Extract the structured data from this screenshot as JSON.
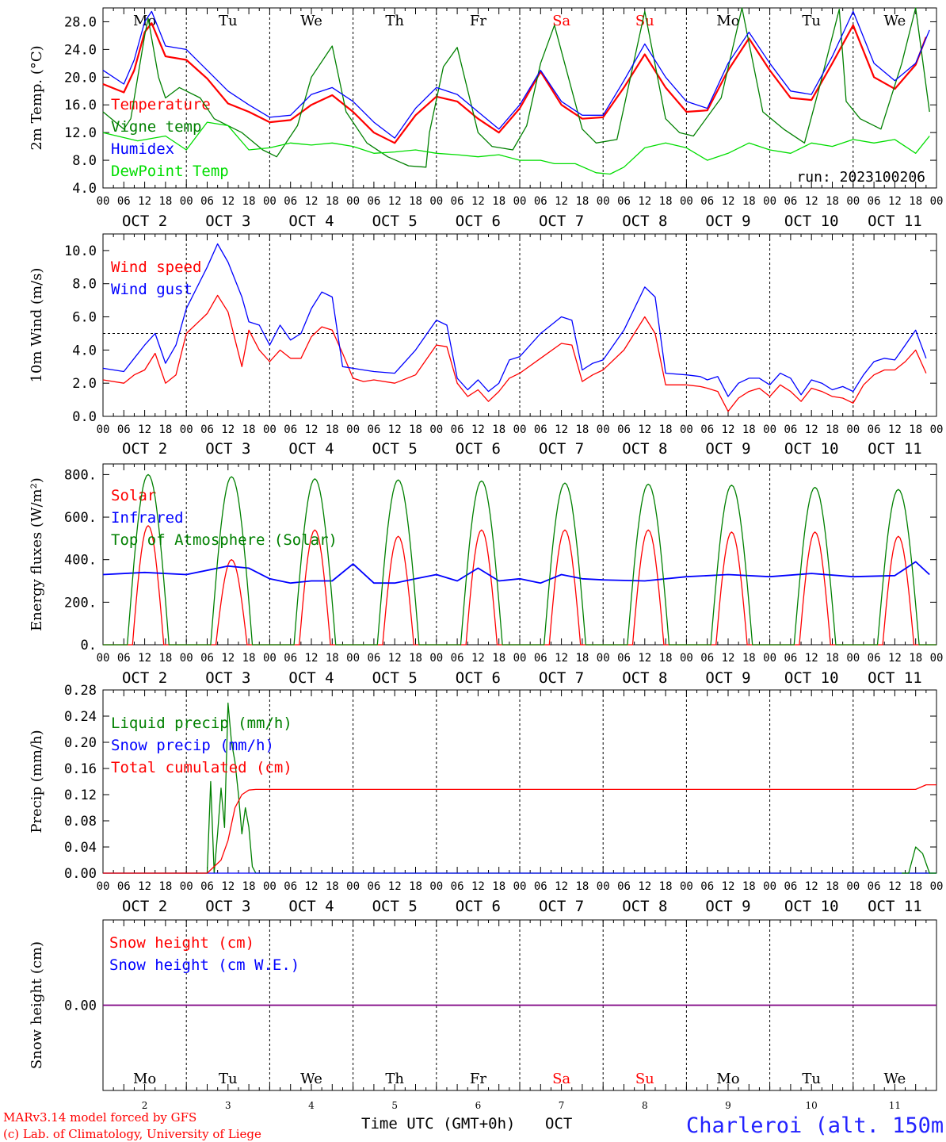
{
  "days": [
    "Mo",
    "Tu",
    "We",
    "Th",
    "Fr",
    "Sa",
    "Su",
    "Mo",
    "Tu",
    "We"
  ],
  "weekend_days": [
    "Sa",
    "Su"
  ],
  "day_labels": [
    "OCT  2",
    "OCT  3",
    "OCT  4",
    "OCT  5",
    "OCT  6",
    "OCT  7",
    "OCT  8",
    "OCT  9",
    "OCT 10",
    "OCT 11"
  ],
  "bottom_day_numbers": [
    "2",
    "3",
    "4",
    "5",
    "6",
    "7",
    "8",
    "9",
    "10",
    "11"
  ],
  "hour_ticks": [
    "00",
    "06",
    "12",
    "18"
  ],
  "run_label": "run: 2023100206",
  "xlabel": "Time UTC (GMT+0h)",
  "month_label": "OCT",
  "credits": [
    "MARv3.14 model forced by GFS",
    "(c) Lab. of Climatology, University of Liege"
  ],
  "location": "Charleroi (alt. 150m)",
  "colors": {
    "red": "#ff0000",
    "blue": "#0000ff",
    "green": "#008000",
    "light_green": "#00dd00",
    "purple": "#800080",
    "location": "#2222ff"
  },
  "chart_data": [
    {
      "type": "line",
      "ylabel": "2m Temp. (°C)",
      "ylim": [
        4,
        30
      ],
      "yticks": [
        "4.0",
        "8.0",
        "12.0",
        "16.0",
        "20.0",
        "24.0",
        "28.0"
      ],
      "ytick_values": [
        4,
        8,
        12,
        16,
        20,
        24,
        28
      ],
      "x_start_day": 2,
      "series": [
        {
          "name": "Temperature",
          "color": "red",
          "x": [
            0,
            6,
            9,
            12,
            14,
            18,
            24,
            30,
            36,
            42,
            48,
            54,
            60,
            66,
            72,
            78,
            84,
            90,
            96,
            102,
            108,
            114,
            120,
            126,
            132,
            138,
            144,
            150,
            156,
            162,
            168,
            174,
            180,
            186,
            192,
            198,
            204,
            210,
            216,
            222,
            228,
            234,
            237
          ],
          "y": [
            19,
            17.8,
            21,
            26.5,
            27.8,
            23,
            22.5,
            19.8,
            16.2,
            15,
            13.5,
            13.8,
            16,
            17.4,
            15,
            12,
            10.5,
            14.5,
            17.2,
            16.5,
            14,
            12,
            15.5,
            20.8,
            16,
            14,
            14.2,
            18.5,
            23.3,
            18.5,
            15,
            15.2,
            21,
            25.6,
            21,
            17,
            16.7,
            22,
            27.5,
            20,
            18.3,
            21.8,
            25.8
          ]
        },
        {
          "name": "Vigne temp",
          "color": "green",
          "x": [
            0,
            6,
            8,
            12,
            13,
            16,
            18,
            22,
            28,
            32,
            36,
            40,
            46,
            50,
            56,
            60,
            66,
            70,
            76,
            82,
            88,
            93,
            94,
            98,
            102,
            108,
            112,
            118,
            122,
            126,
            130,
            138,
            142,
            148,
            156,
            162,
            166,
            170,
            178,
            184,
            190,
            196,
            202,
            206,
            212,
            214,
            218,
            224,
            230,
            234,
            238
          ],
          "y": [
            15,
            12.5,
            14,
            26,
            28.5,
            20,
            17,
            18.5,
            17,
            14,
            13,
            12,
            9.5,
            8.5,
            13,
            20,
            24.5,
            15,
            10.5,
            8.5,
            7.2,
            7,
            12,
            21.5,
            24.3,
            12,
            10,
            9.5,
            13,
            22,
            27.5,
            12.5,
            10.5,
            11,
            29.5,
            14,
            12,
            11.5,
            17,
            30,
            15,
            12.5,
            10.5,
            18,
            29.8,
            16.5,
            14,
            12.5,
            22,
            30,
            15
          ]
        },
        {
          "name": "Humidex",
          "color": "blue",
          "x": [
            0,
            6,
            9,
            12,
            14,
            18,
            24,
            30,
            36,
            42,
            48,
            54,
            60,
            66,
            72,
            78,
            84,
            90,
            96,
            102,
            108,
            114,
            120,
            126,
            132,
            138,
            144,
            150,
            156,
            162,
            168,
            174,
            180,
            186,
            192,
            198,
            204,
            210,
            216,
            222,
            228,
            234,
            238
          ],
          "y": [
            21,
            19,
            22.5,
            28,
            29.5,
            24.5,
            24,
            21,
            18,
            16,
            14.2,
            14.5,
            17.5,
            18.5,
            16.5,
            13.5,
            11.2,
            15.5,
            18.5,
            17.5,
            15,
            12.5,
            16,
            21,
            16.5,
            14.5,
            14.5,
            19.5,
            24.8,
            20,
            16.5,
            15.5,
            22,
            26.5,
            22,
            18,
            17.5,
            23,
            29.5,
            22,
            19.5,
            22,
            26.8
          ]
        },
        {
          "name": "DewPoint Temp",
          "color": "light_green",
          "x": [
            0,
            10,
            18,
            24,
            30,
            36,
            42,
            48,
            54,
            60,
            66,
            72,
            78,
            84,
            90,
            96,
            102,
            108,
            114,
            120,
            126,
            130,
            136,
            142,
            146,
            150,
            156,
            162,
            168,
            174,
            180,
            186,
            192,
            198,
            204,
            210,
            216,
            222,
            228,
            234,
            238
          ],
          "y": [
            12,
            10.8,
            11.5,
            9.5,
            13.5,
            13,
            9.5,
            9.8,
            10.5,
            10.2,
            10.5,
            10,
            9,
            9.2,
            9.5,
            9,
            8.8,
            8.5,
            8.8,
            8,
            8,
            7.5,
            7.5,
            6.2,
            6,
            7,
            9.8,
            10.5,
            9.8,
            8,
            9,
            10.5,
            9.5,
            9,
            10.5,
            10,
            11,
            10.5,
            11,
            9,
            11.5
          ]
        }
      ]
    },
    {
      "type": "line",
      "ylabel": "10m Wind (m/s)",
      "ylim": [
        0,
        11
      ],
      "yticks": [
        "0.0",
        "2.0",
        "4.0",
        "6.0",
        "8.0",
        "10.0"
      ],
      "ytick_values": [
        0,
        2,
        4,
        6,
        8,
        10
      ],
      "reference_line": 5,
      "series": [
        {
          "name": "Wind speed",
          "color": "red",
          "x": [
            0,
            6,
            9,
            12,
            15,
            18,
            21,
            24,
            30,
            33,
            36,
            40,
            42,
            45,
            48,
            51,
            54,
            57,
            60,
            63,
            66,
            69,
            72,
            75,
            78,
            84,
            90,
            96,
            99,
            102,
            105,
            108,
            111,
            114,
            117,
            120,
            126,
            132,
            135,
            138,
            141,
            144,
            150,
            156,
            159,
            162,
            168,
            172,
            174,
            177,
            180,
            183,
            186,
            189,
            192,
            195,
            198,
            201,
            204,
            207,
            210,
            213,
            216,
            219,
            222,
            225,
            228,
            231,
            234,
            237
          ],
          "y": [
            2.2,
            2,
            2.5,
            2.8,
            3.8,
            2,
            2.5,
            5,
            6.2,
            7.3,
            6.3,
            3,
            5.2,
            4,
            3.3,
            4,
            3.5,
            3.5,
            4.8,
            5.4,
            5.2,
            3.8,
            2.3,
            2.1,
            2.2,
            2,
            2.5,
            4.3,
            4.2,
            2,
            1.2,
            1.6,
            0.9,
            1.5,
            2.3,
            2.6,
            3.5,
            4.4,
            4.3,
            2.1,
            2.5,
            2.8,
            4,
            6,
            5,
            1.9,
            1.9,
            1.8,
            1.7,
            1.5,
            0.3,
            1.1,
            1.5,
            1.7,
            1.2,
            1.9,
            1.5,
            0.9,
            1.7,
            1.5,
            1.2,
            1.1,
            0.8,
            1.9,
            2.5,
            2.8,
            2.8,
            3.3,
            4,
            2.6
          ]
        },
        {
          "name": "Wind gust",
          "color": "blue",
          "x": [
            0,
            6,
            9,
            12,
            15,
            18,
            21,
            24,
            30,
            33,
            36,
            40,
            42,
            45,
            48,
            51,
            54,
            57,
            60,
            63,
            66,
            69,
            72,
            75,
            78,
            84,
            90,
            96,
            99,
            102,
            105,
            108,
            111,
            114,
            117,
            120,
            126,
            132,
            135,
            138,
            141,
            144,
            150,
            156,
            159,
            162,
            168,
            172,
            174,
            177,
            180,
            183,
            186,
            189,
            192,
            195,
            198,
            201,
            204,
            207,
            210,
            213,
            216,
            219,
            222,
            225,
            228,
            231,
            234,
            237
          ],
          "y": [
            2.9,
            2.7,
            3.5,
            4.3,
            5,
            3.2,
            4.3,
            6.5,
            9,
            10.4,
            9.3,
            7.2,
            5.7,
            5.5,
            4.3,
            5.5,
            4.6,
            5,
            6.5,
            7.5,
            7.2,
            3,
            2.9,
            2.8,
            2.7,
            2.6,
            4,
            5.8,
            5.5,
            2.3,
            1.6,
            2.2,
            1.5,
            2,
            3.4,
            3.6,
            5,
            6,
            5.8,
            2.8,
            3.2,
            3.4,
            5.2,
            7.8,
            7.2,
            2.6,
            2.5,
            2.4,
            2.2,
            2.4,
            1.2,
            2,
            2.3,
            2.3,
            1.9,
            2.6,
            2.3,
            1.3,
            2.2,
            2,
            1.6,
            1.8,
            1.5,
            2.5,
            3.3,
            3.5,
            3.4,
            4.3,
            5.2,
            3.5
          ]
        }
      ]
    },
    {
      "type": "line",
      "ylabel": "Energy fluxes (W/m²)",
      "ylim": [
        0,
        850
      ],
      "yticks": [
        "0.",
        "200.",
        "400.",
        "600.",
        "800."
      ],
      "ytick_values": [
        0,
        200,
        400,
        600,
        800
      ],
      "series": [
        {
          "name": "Solar",
          "color": "red",
          "peaks": [
            560,
            400,
            540,
            510,
            540,
            540,
            540,
            530,
            530,
            510
          ],
          "peak_hour": 13,
          "half_width": 4.5
        },
        {
          "name": "Infrared",
          "color": "blue",
          "x": [
            0,
            12,
            24,
            36,
            42,
            48,
            54,
            60,
            66,
            72,
            78,
            84,
            90,
            96,
            102,
            108,
            114,
            120,
            126,
            132,
            138,
            144,
            156,
            168,
            180,
            192,
            204,
            216,
            228,
            234,
            238
          ],
          "y": [
            330,
            340,
            330,
            370,
            360,
            310,
            290,
            300,
            300,
            380,
            290,
            290,
            310,
            330,
            300,
            360,
            300,
            310,
            290,
            330,
            310,
            305,
            300,
            320,
            330,
            320,
            335,
            320,
            325,
            390,
            330
          ]
        },
        {
          "name": "Top of Atmosphere (Solar)",
          "color": "green",
          "peaks": [
            800,
            790,
            780,
            775,
            770,
            760,
            755,
            750,
            740,
            730
          ],
          "peak_hour": 13,
          "half_width": 6
        }
      ]
    },
    {
      "type": "line",
      "ylabel": "Precip (mm/h)",
      "ylim": [
        0,
        0.28
      ],
      "yticks": [
        "0.00",
        "0.04",
        "0.08",
        "0.12",
        "0.16",
        "0.20",
        "0.24",
        "0.28"
      ],
      "ytick_values": [
        0,
        0.04,
        0.08,
        0.12,
        0.16,
        0.2,
        0.24,
        0.28
      ],
      "series": [
        {
          "name": "Liquid precip (mm/h)",
          "color": "green",
          "x": [
            0,
            30,
            31,
            32,
            33,
            34,
            35,
            36,
            37,
            38,
            39,
            40,
            41,
            42,
            43,
            44,
            240
          ],
          "y": [
            0,
            0,
            0.14,
            0,
            0.06,
            0.13,
            0.07,
            0.26,
            0.2,
            0.17,
            0.12,
            0.06,
            0.1,
            0.07,
            0.01,
            0,
            0
          ]
        },
        {
          "name": "Snow precip (mm/h)",
          "color": "blue",
          "x": [
            0,
            240
          ],
          "y": [
            0,
            0
          ]
        },
        {
          "name": "Total cumulated (cm)",
          "color": "red",
          "x": [
            0,
            30,
            34,
            36,
            38,
            40,
            42,
            44,
            234,
            237,
            240
          ],
          "y": [
            0,
            0,
            0.02,
            0.05,
            0.1,
            0.12,
            0.127,
            0.128,
            0.128,
            0.135,
            0.135
          ]
        }
      ],
      "secondary_series_green_end": {
        "x": [
          230,
          232,
          234,
          236,
          238,
          240
        ],
        "y": [
          0,
          0,
          0.04,
          0.03,
          0,
          0
        ]
      }
    },
    {
      "type": "line",
      "ylabel": "Snow height (cm)",
      "ylim": [
        -1,
        1
      ],
      "yticks": [
        "0.00"
      ],
      "ytick_values": [
        0
      ],
      "series": [
        {
          "name": "Snow height (cm)",
          "color": "red",
          "x": [
            0,
            240
          ],
          "y": [
            0,
            0
          ]
        },
        {
          "name": "Snow height (cm W.E.)",
          "color": "blue",
          "x": [
            0,
            240
          ],
          "y": [
            0,
            0
          ]
        }
      ]
    }
  ]
}
